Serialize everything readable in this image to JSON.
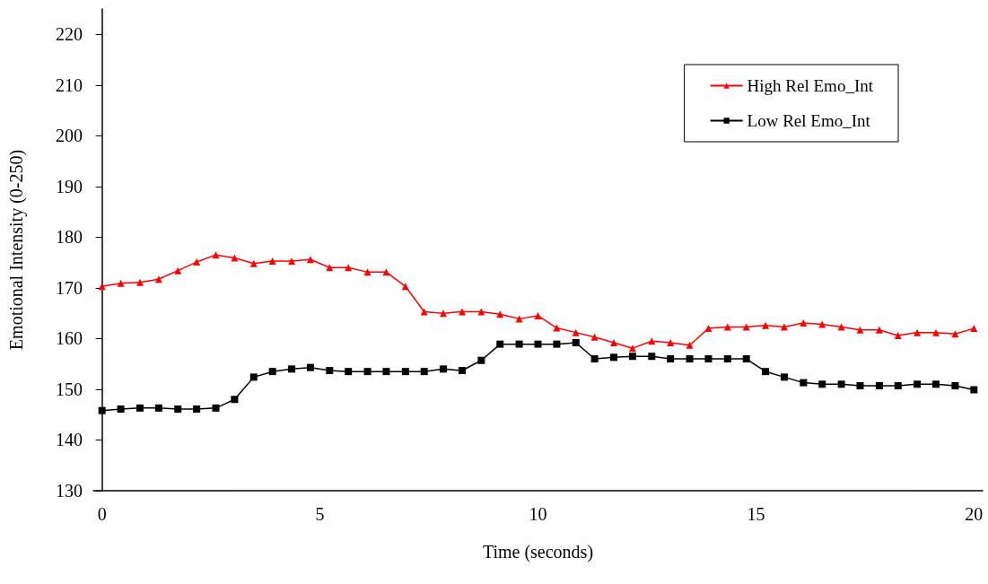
{
  "chart_data": {
    "type": "line",
    "xlabel": "Time (seconds)",
    "ylabel": "Emotional Intensity (0-250)",
    "x": [
      0,
      0.43,
      0.87,
      1.3,
      1.74,
      2.17,
      2.61,
      3.04,
      3.48,
      3.91,
      4.35,
      4.78,
      5.22,
      5.65,
      6.09,
      6.52,
      6.96,
      7.39,
      7.83,
      8.26,
      8.7,
      9.13,
      9.57,
      10,
      10.43,
      10.87,
      11.3,
      11.74,
      12.17,
      12.61,
      13.04,
      13.48,
      13.91,
      14.35,
      14.78,
      15.22,
      15.65,
      16.09,
      16.52,
      16.96,
      17.39,
      17.83,
      18.26,
      18.7,
      19.13,
      19.57,
      20
    ],
    "series": [
      {
        "name": "High Rel Emo_Int",
        "color": "#ff0000",
        "marker": "triangle",
        "values": [
          170.3,
          170.9,
          171.1,
          171.7,
          173.4,
          175.1,
          176.5,
          175.9,
          174.8,
          175.3,
          175.3,
          175.6,
          174,
          174,
          173.1,
          173.1,
          170.3,
          165.3,
          165,
          165.3,
          165.3,
          164.8,
          163.9,
          164.5,
          162.1,
          161.2,
          160.3,
          159.2,
          158.1,
          159.5,
          159.2,
          158.7,
          162,
          162.3,
          162.3,
          162.6,
          162.3,
          163.1,
          162.8,
          162.3,
          161.7,
          161.7,
          160.6,
          161.2,
          161.2,
          160.9,
          162
        ]
      },
      {
        "name": "Low Rel Emo_Int",
        "color": "#000000",
        "marker": "square",
        "values": [
          145.8,
          146.1,
          146.3,
          146.3,
          146.1,
          146.1,
          146.3,
          148,
          152.4,
          153.5,
          154,
          154.3,
          153.7,
          153.5,
          153.5,
          153.5,
          153.5,
          153.5,
          154,
          153.7,
          155.7,
          158.9,
          158.9,
          158.9,
          158.9,
          159.2,
          156,
          156.3,
          156.5,
          156.5,
          156,
          156,
          156,
          156,
          156,
          153.5,
          152.4,
          151.3,
          151,
          151,
          150.7,
          150.7,
          150.7,
          151,
          151,
          150.7,
          149.9
        ]
      }
    ],
    "xlim": [
      -0.2,
      20.2
    ],
    "xticks": [
      0,
      5,
      10,
      15,
      20
    ],
    "ylim": [
      130,
      225
    ],
    "yticks": [
      130,
      140,
      150,
      160,
      170,
      180,
      190,
      200,
      210,
      220
    ],
    "grid": false,
    "legend": "top right",
    "line_style": "solid"
  }
}
